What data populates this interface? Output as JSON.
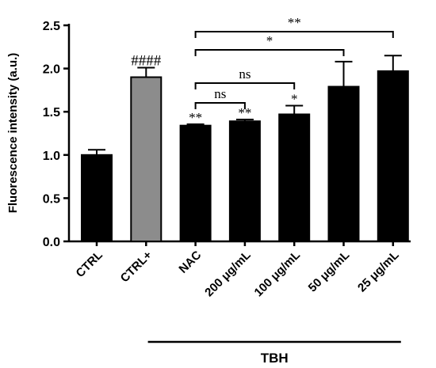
{
  "chart_data": {
    "type": "bar",
    "ylabel": "Fluorescence intensity (a.u.)",
    "ylim": [
      0,
      2.5
    ],
    "yticks": [
      "0.0",
      "0.5",
      "1.0",
      "1.5",
      "2.0",
      "2.5"
    ],
    "grid": false,
    "categories": [
      "CTRL",
      "CTRL+",
      "NAC",
      "200 μg/mL",
      "100 μg/mL",
      "50 μg/mL",
      "25 μg/mL"
    ],
    "values": [
      1.0,
      1.9,
      1.34,
      1.39,
      1.47,
      1.79,
      1.97
    ],
    "errors": [
      0.06,
      0.11,
      0.015,
      0.02,
      0.1,
      0.29,
      0.18
    ],
    "bar_colors": [
      "#000000",
      "#8c8c8c",
      "#000000",
      "#000000",
      "#000000",
      "#000000",
      "#000000"
    ],
    "bar_markers": [
      "",
      "####",
      "**",
      "**",
      "*",
      "",
      ""
    ],
    "group_label": "TBH",
    "group_range": [
      "NAC",
      "25 μg/mL"
    ],
    "comparisons": [
      {
        "from": "NAC",
        "to": "25 μg/mL",
        "label": "**"
      },
      {
        "from": "NAC",
        "to": "50 μg/mL",
        "label": "*"
      },
      {
        "from": "NAC",
        "to": "100 μg/mL",
        "label": "ns"
      },
      {
        "from": "NAC",
        "to": "200 μg/mL",
        "label": "ns"
      }
    ]
  }
}
